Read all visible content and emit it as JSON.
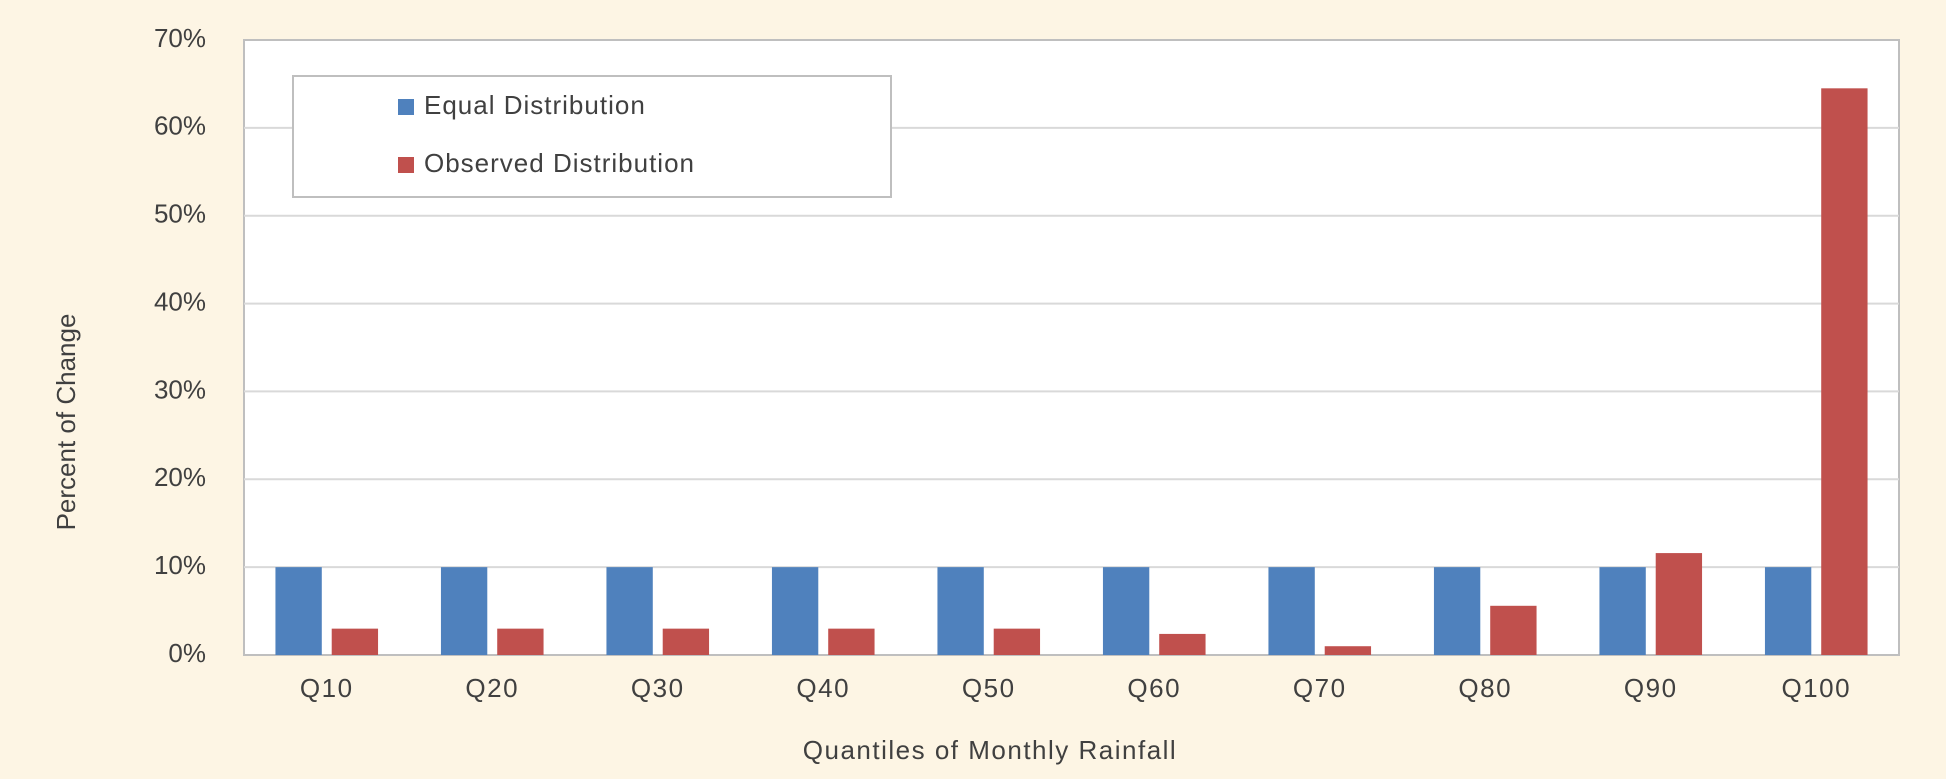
{
  "chart_data": {
    "type": "bar",
    "x_label": "Quantiles of Monthly Rainfall",
    "y_label": "Percent of Change",
    "categories": [
      "Q10",
      "Q20",
      "Q30",
      "Q40",
      "Q50",
      "Q60",
      "Q70",
      "Q80",
      "Q90",
      "Q100"
    ],
    "series": [
      {
        "name": "Equal Distribution",
        "color": "#4f81bd",
        "values": [
          10,
          10,
          10,
          10,
          10,
          10,
          10,
          10,
          10,
          10
        ]
      },
      {
        "name": "Observed Distribution",
        "color": "#c0504d",
        "values": [
          3.0,
          3.0,
          3.0,
          3.0,
          3.0,
          2.4,
          1.0,
          5.6,
          11.6,
          64.5
        ]
      }
    ],
    "ylim": [
      0,
      70
    ],
    "yticks": [
      {
        "value": 0,
        "label": "0%"
      },
      {
        "value": 10,
        "label": "10%"
      },
      {
        "value": 20,
        "label": "20%"
      },
      {
        "value": 30,
        "label": "30%"
      },
      {
        "value": 40,
        "label": "40%"
      },
      {
        "value": 50,
        "label": "50%"
      },
      {
        "value": 60,
        "label": "60%"
      },
      {
        "value": 70,
        "label": "70%"
      }
    ],
    "grid": true,
    "legend": "upper left"
  }
}
